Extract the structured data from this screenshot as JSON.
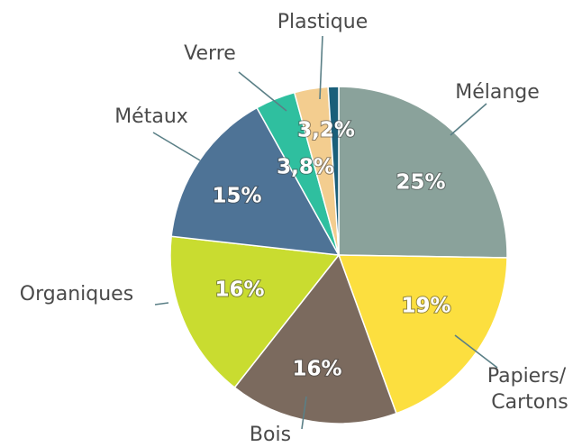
{
  "chart_data": {
    "type": "pie",
    "categories": [
      "Mélange",
      "Papiers/ Cartons",
      "Bois",
      "Organiques",
      "Métaux",
      "Verre",
      "Plastique",
      null
    ],
    "values": [
      25,
      19,
      16,
      16,
      15,
      3.8,
      3.2,
      1
    ],
    "value_labels": [
      "25%",
      "19%",
      "16%",
      "16%",
      "15%",
      "3,8%",
      "3,2%",
      null
    ],
    "colors": [
      "#8aa29b",
      "#fcdf3f",
      "#7b6a5e",
      "#c9dc30",
      "#4e7396",
      "#2fbf9f",
      "#f3cd8f",
      "#1a5f7a"
    ]
  }
}
